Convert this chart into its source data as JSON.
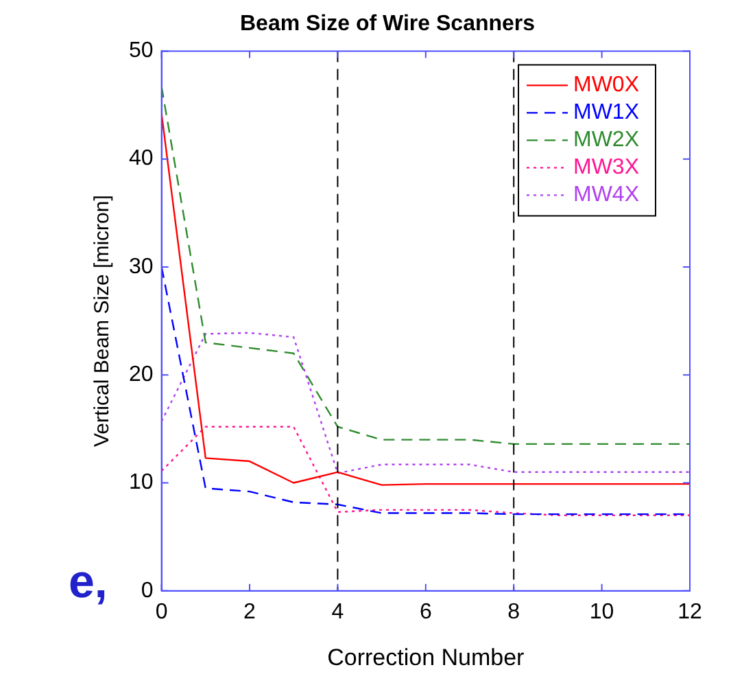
{
  "chart_data": {
    "type": "line",
    "title": "Beam Size of Wire Scanners",
    "xlabel": "Correction Number",
    "ylabel": "Vertical Beam Size [micron]",
    "x": [
      0,
      1,
      2,
      3,
      4,
      5,
      6,
      7,
      8,
      9,
      10,
      11,
      12
    ],
    "series": [
      {
        "name": "MW0X",
        "color": "#ff0000",
        "line_style": "solid",
        "values": [
          44.2,
          12.3,
          12.0,
          10.0,
          11.0,
          9.8,
          9.9,
          9.9,
          9.9,
          9.9,
          9.9,
          9.9,
          9.9
        ]
      },
      {
        "name": "MW1X",
        "color": "#0000ff",
        "line_style": "dashed",
        "values": [
          30.0,
          9.5,
          9.2,
          8.2,
          8.0,
          7.2,
          7.2,
          7.2,
          7.1,
          7.1,
          7.1,
          7.1,
          7.1
        ]
      },
      {
        "name": "MW2X",
        "color": "#2e8b2e",
        "line_style": "dashed",
        "values": [
          46.7,
          23.0,
          22.5,
          22.0,
          15.2,
          14.0,
          14.0,
          14.0,
          13.6,
          13.6,
          13.6,
          13.6,
          13.6
        ]
      },
      {
        "name": "MW3X",
        "color": "#ff1493",
        "line_style": "dotted",
        "values": [
          11.1,
          15.2,
          15.2,
          15.2,
          7.3,
          7.5,
          7.5,
          7.5,
          7.2,
          7.0,
          7.0,
          7.0,
          7.0
        ]
      },
      {
        "name": "MW4X",
        "color": "#b040f0",
        "line_style": "dotted",
        "values": [
          15.7,
          23.8,
          23.9,
          23.5,
          10.9,
          11.7,
          11.7,
          11.7,
          11.0,
          11.0,
          11.0,
          11.0,
          11.0
        ]
      }
    ],
    "xlim": [
      0,
      12
    ],
    "xticks": [
      0,
      2,
      4,
      6,
      8,
      10,
      12
    ],
    "ylim": [
      0,
      50
    ],
    "yticks": [
      0,
      10,
      20,
      30,
      40,
      50
    ],
    "ref_lines": [
      {
        "axis": "x",
        "value": 4,
        "color": "#000000",
        "line_style": "dashed"
      },
      {
        "axis": "x",
        "value": 8,
        "color": "#000000",
        "line_style": "dashed"
      }
    ],
    "legend": "top right",
    "grid": false,
    "marker": "none",
    "annotations": [
      "e,"
    ]
  }
}
